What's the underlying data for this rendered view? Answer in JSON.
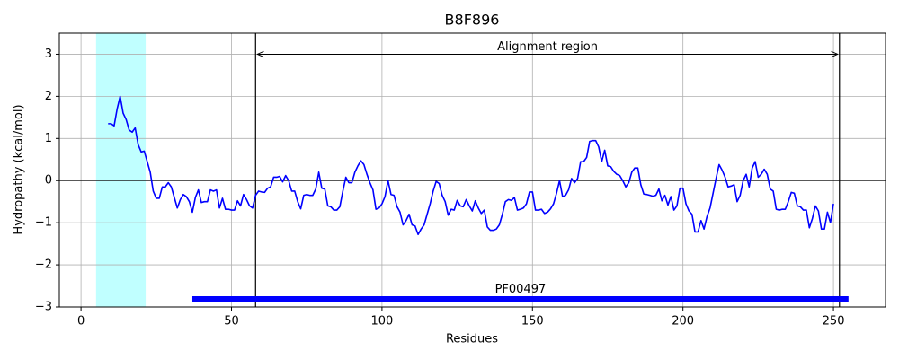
{
  "chart_data": {
    "type": "line",
    "title": "B8F896",
    "xlabel": "Residues",
    "ylabel": "Hydropathy (kcal/mol)",
    "x": [
      9,
      10,
      11,
      12,
      13,
      14,
      15,
      16,
      17,
      18,
      19,
      20,
      21,
      22,
      23,
      24,
      25,
      26,
      27,
      28,
      29,
      30,
      31,
      32,
      33,
      34,
      35,
      36,
      37,
      38,
      39,
      40,
      41,
      42,
      43,
      44,
      45,
      46,
      47,
      48,
      49,
      50,
      51,
      52,
      53,
      54,
      55,
      56,
      57,
      58,
      59,
      60,
      61,
      62,
      63,
      64,
      65,
      66,
      67,
      68,
      69,
      70,
      71,
      72,
      73,
      74,
      75,
      76,
      77,
      78,
      79,
      80,
      81,
      82,
      83,
      84,
      85,
      86,
      87,
      88,
      89,
      90,
      91,
      92,
      93,
      94,
      95,
      96,
      97,
      98,
      99,
      100,
      101,
      102,
      103,
      104,
      105,
      106,
      107,
      108,
      109,
      110,
      111,
      112,
      113,
      114,
      115,
      116,
      117,
      118,
      119,
      120,
      121,
      122,
      123,
      124,
      125,
      126,
      127,
      128,
      129,
      130,
      131,
      132,
      133,
      134,
      135,
      136,
      137,
      138,
      139,
      140,
      141,
      142,
      143,
      144,
      145,
      146,
      147,
      148,
      149,
      150,
      151,
      152,
      153,
      154,
      155,
      156,
      157,
      158,
      159,
      160,
      161,
      162,
      163,
      164,
      165,
      166,
      167,
      168,
      169,
      170,
      171,
      172,
      173,
      174,
      175,
      176,
      177,
      178,
      179,
      180,
      181,
      182,
      183,
      184,
      185,
      186,
      187,
      188,
      189,
      190,
      191,
      192,
      193,
      194,
      195,
      196,
      197,
      198,
      199,
      200,
      201,
      202,
      203,
      204,
      205,
      206,
      207,
      208,
      209,
      210,
      211,
      212,
      213,
      214,
      215,
      216,
      217,
      218,
      219,
      220,
      221,
      222,
      223,
      224,
      225,
      226,
      227,
      228,
      229,
      230,
      231,
      232,
      233,
      234,
      235,
      236,
      237,
      238,
      239,
      240,
      241,
      242,
      243,
      244,
      245,
      246,
      247,
      248,
      249,
      250
    ],
    "values": [
      1.35,
      1.35,
      1.3,
      1.7,
      2.0,
      1.6,
      1.45,
      1.2,
      1.15,
      1.25,
      0.85,
      0.68,
      0.7,
      0.45,
      0.2,
      -0.25,
      -0.42,
      -0.42,
      -0.15,
      -0.15,
      -0.05,
      -0.15,
      -0.4,
      -0.65,
      -0.45,
      -0.33,
      -0.38,
      -0.5,
      -0.75,
      -0.4,
      -0.22,
      -0.52,
      -0.5,
      -0.5,
      -0.22,
      -0.25,
      -0.22,
      -0.65,
      -0.42,
      -0.68,
      -0.68,
      -0.7,
      -0.7,
      -0.48,
      -0.6,
      -0.33,
      -0.45,
      -0.6,
      -0.65,
      -0.35,
      -0.25,
      -0.27,
      -0.28,
      -0.18,
      -0.15,
      0.08,
      0.08,
      0.1,
      -0.03,
      0.12,
      0.0,
      -0.25,
      -0.25,
      -0.5,
      -0.67,
      -0.35,
      -0.33,
      -0.35,
      -0.35,
      -0.2,
      0.2,
      -0.18,
      -0.2,
      -0.6,
      -0.62,
      -0.7,
      -0.7,
      -0.62,
      -0.25,
      0.08,
      -0.05,
      -0.05,
      0.2,
      0.35,
      0.47,
      0.38,
      0.15,
      -0.05,
      -0.22,
      -0.68,
      -0.65,
      -0.55,
      -0.38,
      0.0,
      -0.33,
      -0.35,
      -0.62,
      -0.75,
      -1.05,
      -0.95,
      -0.8,
      -1.05,
      -1.08,
      -1.28,
      -1.15,
      -1.05,
      -0.8,
      -0.55,
      -0.25,
      -0.02,
      -0.07,
      -0.35,
      -0.5,
      -0.82,
      -0.68,
      -0.7,
      -0.47,
      -0.6,
      -0.62,
      -0.45,
      -0.6,
      -0.72,
      -0.48,
      -0.65,
      -0.78,
      -0.7,
      -1.1,
      -1.18,
      -1.18,
      -1.15,
      -1.05,
      -0.8,
      -0.5,
      -0.45,
      -0.47,
      -0.4,
      -0.7,
      -0.68,
      -0.65,
      -0.55,
      -0.27,
      -0.27,
      -0.7,
      -0.7,
      -0.68,
      -0.78,
      -0.75,
      -0.67,
      -0.55,
      -0.3,
      0.0,
      -0.38,
      -0.35,
      -0.22,
      0.05,
      -0.05,
      0.05,
      0.45,
      0.45,
      0.55,
      0.93,
      0.95,
      0.95,
      0.8,
      0.45,
      0.72,
      0.35,
      0.33,
      0.22,
      0.15,
      0.12,
      0.0,
      -0.15,
      -0.05,
      0.2,
      0.3,
      0.3,
      -0.1,
      -0.32,
      -0.33,
      -0.35,
      -0.37,
      -0.35,
      -0.2,
      -0.48,
      -0.35,
      -0.58,
      -0.38,
      -0.7,
      -0.6,
      -0.18,
      -0.18,
      -0.55,
      -0.72,
      -0.8,
      -1.22,
      -1.22,
      -0.95,
      -1.15,
      -0.85,
      -0.65,
      -0.3,
      0.05,
      0.38,
      0.25,
      0.08,
      -0.15,
      -0.13,
      -0.1,
      -0.5,
      -0.35,
      0.0,
      0.15,
      -0.15,
      0.3,
      0.45,
      0.08,
      0.15,
      0.27,
      0.15,
      -0.2,
      -0.25,
      -0.68,
      -0.7,
      -0.68,
      -0.68,
      -0.5,
      -0.28,
      -0.3,
      -0.6,
      -0.62,
      -0.7,
      -0.7,
      -1.12,
      -0.9,
      -0.6,
      -0.72,
      -1.15,
      -1.15,
      -0.75,
      -1.0,
      -0.55
    ],
    "color": "#0000ff",
    "xlim": [
      -7.2,
      267.3
    ],
    "ylim": [
      -3,
      3.5
    ],
    "xticks": [
      0,
      50,
      100,
      150,
      200,
      250
    ],
    "yticks": [
      {
        "value": -3,
        "label": "−3"
      },
      {
        "value": -2,
        "label": "−2"
      },
      {
        "value": -1,
        "label": "−1"
      },
      0,
      1,
      2,
      3
    ],
    "grid": true,
    "span": [
      5,
      21.5
    ],
    "span_color": "#c0ffff",
    "alignment": {
      "label": "Alignment region",
      "start": 58,
      "end": 252,
      "y": 3
    },
    "domain": {
      "label": "PF00497",
      "start": 37,
      "end": 255,
      "y": -2.82,
      "color": "#0000ff"
    }
  }
}
